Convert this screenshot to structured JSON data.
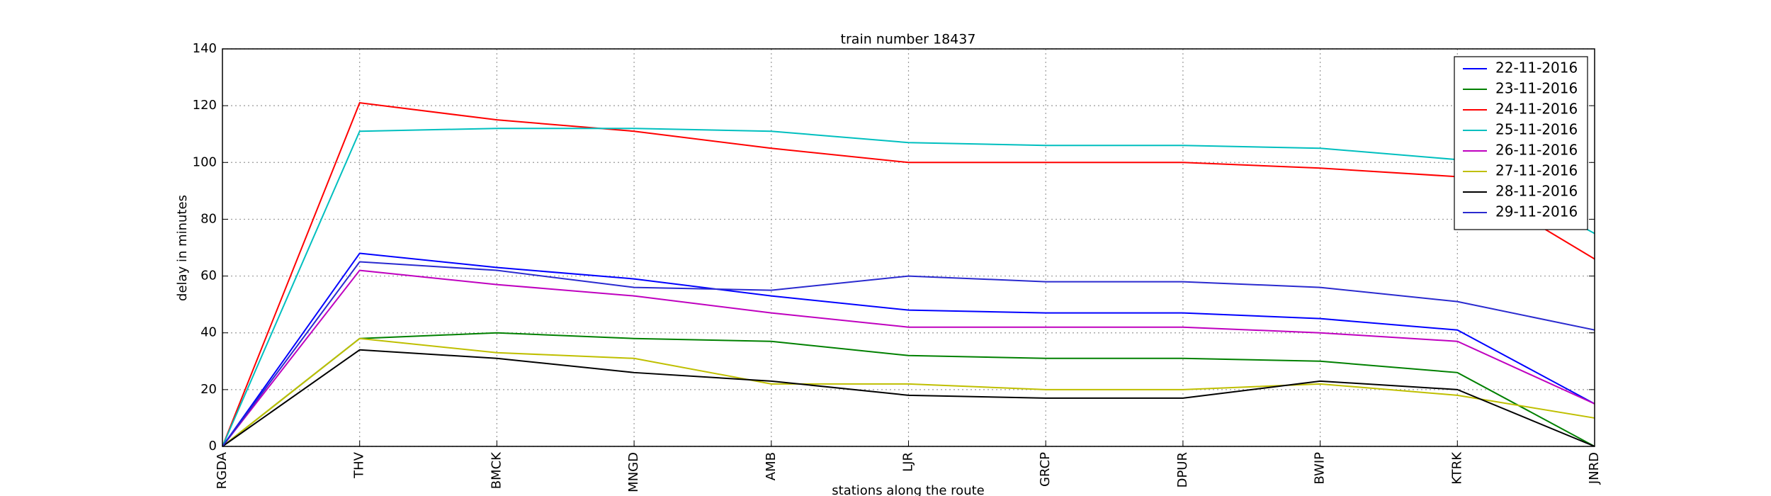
{
  "chart_data": {
    "type": "line",
    "title": "train number 18437",
    "x_label": "stations along the route",
    "y_label": "delay in minutes",
    "categories": [
      "RGDA",
      "THV",
      "BMCK",
      "MNGD",
      "AMB",
      "LJR",
      "GRCP",
      "DPUR",
      "BWIP",
      "KTRK",
      "JNRD"
    ],
    "series": [
      {
        "name": "22-11-2016",
        "color": "#0000ff",
        "values": [
          0,
          68,
          63,
          59,
          53,
          48,
          47,
          47,
          45,
          41,
          15
        ]
      },
      {
        "name": "23-11-2016",
        "color": "#008000",
        "values": [
          0,
          38,
          40,
          38,
          37,
          32,
          31,
          31,
          30,
          26,
          0
        ]
      },
      {
        "name": "24-11-2016",
        "color": "#ff0000",
        "values": [
          0,
          121,
          115,
          111,
          105,
          100,
          100,
          100,
          98,
          95,
          66
        ]
      },
      {
        "name": "25-11-2016",
        "color": "#00bfbf",
        "values": [
          0,
          111,
          112,
          112,
          111,
          107,
          106,
          106,
          105,
          101,
          75
        ]
      },
      {
        "name": "26-11-2016",
        "color": "#bf00bf",
        "values": [
          0,
          62,
          57,
          53,
          47,
          42,
          42,
          42,
          40,
          37,
          15
        ]
      },
      {
        "name": "27-11-2016",
        "color": "#bfbf00",
        "values": [
          0,
          38,
          33,
          31,
          22,
          22,
          20,
          20,
          22,
          18,
          10
        ]
      },
      {
        "name": "28-11-2016",
        "color": "#000000",
        "values": [
          0,
          34,
          31,
          26,
          23,
          18,
          17,
          17,
          23,
          20,
          0
        ]
      },
      {
        "name": "29-11-2016",
        "color": "#2a2acf",
        "values": [
          0,
          65,
          62,
          56,
          55,
          60,
          58,
          58,
          56,
          51,
          41
        ]
      }
    ],
    "ylim": [
      0,
      140
    ],
    "yticks": [
      0,
      20,
      40,
      60,
      80,
      100,
      120,
      140
    ],
    "grid": true,
    "legend_position": "upper right"
  }
}
